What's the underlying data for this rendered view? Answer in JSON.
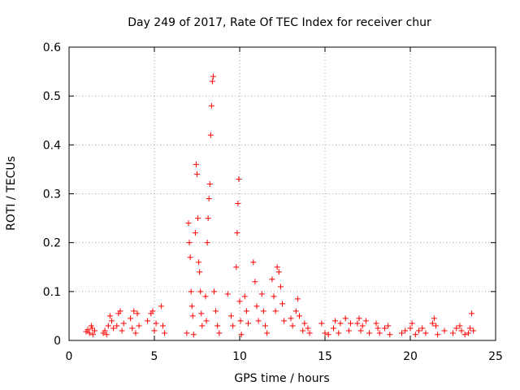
{
  "chart_data": {
    "type": "scatter",
    "title": "Day 249 of 2017, Rate Of TEC Index for receiver chur",
    "xlabel": "GPS time / hours",
    "ylabel": "ROTI / TECUs",
    "xlim": [
      0,
      25
    ],
    "ylim": [
      0,
      0.6
    ],
    "xticks": [
      "0",
      "5",
      "10",
      "15",
      "20",
      "25"
    ],
    "yticks": [
      "0",
      "0.1",
      "0.2",
      "0.3",
      "0.4",
      "0.5",
      "0.6"
    ],
    "grid": true,
    "marker": "plus",
    "color": "#ff0000",
    "series": [
      {
        "points": [
          [
            1.0,
            0.018
          ],
          [
            1.1,
            0.022
          ],
          [
            1.2,
            0.015
          ],
          [
            1.3,
            0.03
          ],
          [
            1.35,
            0.025
          ],
          [
            1.4,
            0.012
          ],
          [
            1.5,
            0.02
          ],
          [
            2.0,
            0.015
          ],
          [
            2.1,
            0.02
          ],
          [
            2.2,
            0.012
          ],
          [
            2.3,
            0.03
          ],
          [
            2.4,
            0.05
          ],
          [
            2.5,
            0.04
          ],
          [
            2.6,
            0.025
          ],
          [
            2.8,
            0.03
          ],
          [
            2.9,
            0.055
          ],
          [
            3.0,
            0.06
          ],
          [
            3.1,
            0.02
          ],
          [
            3.2,
            0.035
          ],
          [
            3.6,
            0.045
          ],
          [
            3.7,
            0.025
          ],
          [
            3.8,
            0.06
          ],
          [
            3.9,
            0.015
          ],
          [
            4.0,
            0.055
          ],
          [
            4.1,
            0.03
          ],
          [
            4.6,
            0.04
          ],
          [
            4.8,
            0.055
          ],
          [
            4.9,
            0.06
          ],
          [
            5.0,
            0.02
          ],
          [
            5.1,
            0.035
          ],
          [
            5.4,
            0.07
          ],
          [
            5.5,
            0.03
          ],
          [
            5.6,
            0.015
          ],
          [
            6.9,
            0.015
          ],
          [
            7.0,
            0.24
          ],
          [
            7.05,
            0.2
          ],
          [
            7.1,
            0.17
          ],
          [
            7.15,
            0.1
          ],
          [
            7.2,
            0.07
          ],
          [
            7.25,
            0.05
          ],
          [
            7.3,
            0.012
          ],
          [
            7.4,
            0.22
          ],
          [
            7.45,
            0.36
          ],
          [
            7.5,
            0.34
          ],
          [
            7.55,
            0.25
          ],
          [
            7.6,
            0.16
          ],
          [
            7.65,
            0.14
          ],
          [
            7.7,
            0.1
          ],
          [
            7.75,
            0.055
          ],
          [
            7.8,
            0.03
          ],
          [
            8.0,
            0.09
          ],
          [
            8.05,
            0.04
          ],
          [
            8.1,
            0.2
          ],
          [
            8.15,
            0.25
          ],
          [
            8.2,
            0.29
          ],
          [
            8.25,
            0.32
          ],
          [
            8.3,
            0.42
          ],
          [
            8.35,
            0.48
          ],
          [
            8.4,
            0.53
          ],
          [
            8.45,
            0.54
          ],
          [
            8.5,
            0.1
          ],
          [
            8.6,
            0.06
          ],
          [
            8.7,
            0.03
          ],
          [
            8.8,
            0.015
          ],
          [
            9.3,
            0.095
          ],
          [
            9.5,
            0.05
          ],
          [
            9.6,
            0.03
          ],
          [
            9.8,
            0.15
          ],
          [
            9.85,
            0.22
          ],
          [
            9.9,
            0.28
          ],
          [
            9.95,
            0.33
          ],
          [
            10.0,
            0.08
          ],
          [
            10.05,
            0.04
          ],
          [
            10.1,
            0.012
          ],
          [
            10.3,
            0.09
          ],
          [
            10.4,
            0.06
          ],
          [
            10.5,
            0.035
          ],
          [
            10.8,
            0.16
          ],
          [
            10.9,
            0.12
          ],
          [
            11.0,
            0.07
          ],
          [
            11.1,
            0.04
          ],
          [
            11.3,
            0.095
          ],
          [
            11.4,
            0.06
          ],
          [
            11.5,
            0.03
          ],
          [
            11.6,
            0.015
          ],
          [
            11.9,
            0.125
          ],
          [
            12.0,
            0.09
          ],
          [
            12.1,
            0.06
          ],
          [
            12.2,
            0.15
          ],
          [
            12.3,
            0.14
          ],
          [
            12.4,
            0.11
          ],
          [
            12.5,
            0.075
          ],
          [
            12.6,
            0.04
          ],
          [
            13.0,
            0.045
          ],
          [
            13.1,
            0.03
          ],
          [
            13.3,
            0.06
          ],
          [
            13.4,
            0.085
          ],
          [
            13.5,
            0.05
          ],
          [
            13.7,
            0.02
          ],
          [
            13.8,
            0.035
          ],
          [
            14.0,
            0.025
          ],
          [
            14.1,
            0.015
          ],
          [
            14.8,
            0.035
          ],
          [
            15.0,
            0.015
          ],
          [
            15.2,
            0.012
          ],
          [
            15.5,
            0.025
          ],
          [
            15.6,
            0.04
          ],
          [
            15.8,
            0.015
          ],
          [
            15.9,
            0.035
          ],
          [
            16.2,
            0.045
          ],
          [
            16.4,
            0.02
          ],
          [
            16.5,
            0.035
          ],
          [
            16.9,
            0.035
          ],
          [
            17.0,
            0.045
          ],
          [
            17.1,
            0.02
          ],
          [
            17.2,
            0.03
          ],
          [
            17.4,
            0.04
          ],
          [
            17.6,
            0.015
          ],
          [
            18.0,
            0.035
          ],
          [
            18.1,
            0.025
          ],
          [
            18.2,
            0.015
          ],
          [
            18.5,
            0.025
          ],
          [
            18.7,
            0.03
          ],
          [
            18.8,
            0.012
          ],
          [
            19.5,
            0.015
          ],
          [
            19.7,
            0.02
          ],
          [
            20.0,
            0.025
          ],
          [
            20.1,
            0.035
          ],
          [
            20.3,
            0.012
          ],
          [
            20.5,
            0.02
          ],
          [
            20.7,
            0.025
          ],
          [
            20.9,
            0.015
          ],
          [
            21.3,
            0.035
          ],
          [
            21.4,
            0.045
          ],
          [
            21.5,
            0.03
          ],
          [
            21.6,
            0.012
          ],
          [
            22.0,
            0.02
          ],
          [
            22.5,
            0.015
          ],
          [
            22.7,
            0.025
          ],
          [
            22.9,
            0.03
          ],
          [
            23.0,
            0.02
          ],
          [
            23.2,
            0.012
          ],
          [
            23.4,
            0.015
          ],
          [
            23.5,
            0.025
          ],
          [
            23.6,
            0.055
          ],
          [
            23.7,
            0.02
          ]
        ]
      }
    ]
  }
}
